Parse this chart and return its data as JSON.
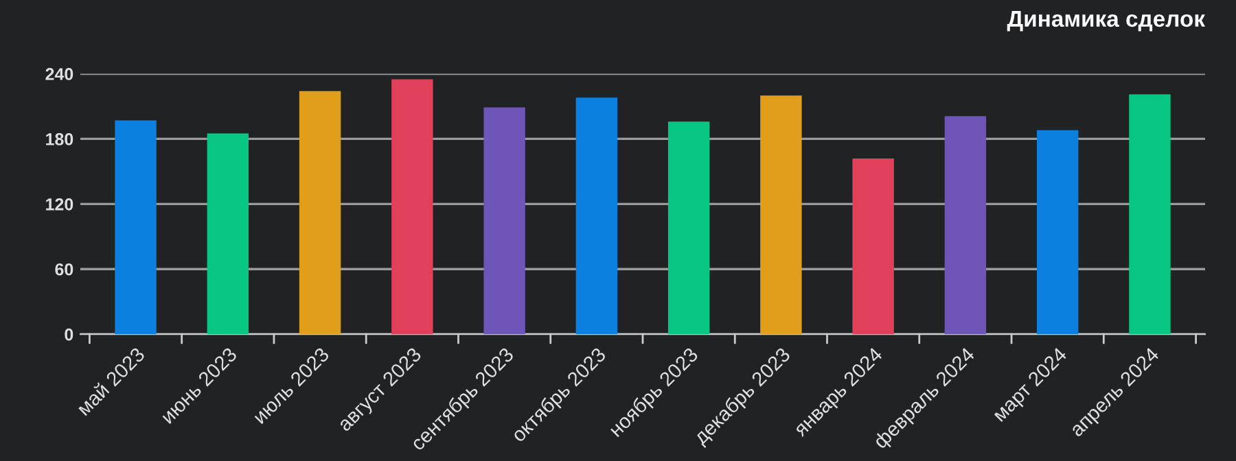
{
  "chart_data": {
    "type": "bar",
    "title": "Динамика сделок",
    "categories": [
      "май 2023",
      "июнь 2023",
      "июль 2023",
      "август 2023",
      "сентябрь 2023",
      "октябрь 2023",
      "ноябрь 2023",
      "декабрь 2023",
      "январь 2024",
      "февраль 2024",
      "март 2024",
      "апрель 2024"
    ],
    "values": [
      197,
      185,
      224,
      235,
      209,
      218,
      196,
      220,
      162,
      201,
      188,
      221
    ],
    "colors": [
      "#0b80e0",
      "#07c783",
      "#e09e1a",
      "#e0405a",
      "#6e55b8",
      "#0b80e0",
      "#07c783",
      "#e09e1a",
      "#e0405a",
      "#6e55b8",
      "#0b80e0",
      "#07c783"
    ],
    "ylim": [
      0,
      240
    ],
    "yticks": [
      0,
      60,
      120,
      180,
      240
    ],
    "grid": "y"
  }
}
